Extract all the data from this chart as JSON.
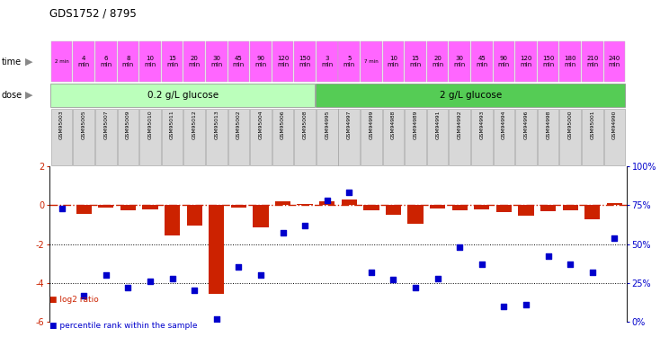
{
  "title": "GDS1752 / 8795",
  "samples": [
    "GSM95003",
    "GSM95005",
    "GSM95007",
    "GSM95009",
    "GSM95010",
    "GSM95011",
    "GSM95012",
    "GSM95013",
    "GSM95002",
    "GSM95004",
    "GSM95006",
    "GSM95008",
    "GSM94995",
    "GSM94997",
    "GSM94999",
    "GSM94988",
    "GSM94989",
    "GSM94991",
    "GSM94992",
    "GSM94993",
    "GSM94994",
    "GSM94996",
    "GSM94998",
    "GSM95000",
    "GSM95001",
    "GSM94990"
  ],
  "log2_ratio": [
    0.0,
    -0.45,
    -0.15,
    -0.25,
    -0.2,
    -1.55,
    -1.05,
    -4.55,
    -0.12,
    -1.15,
    0.18,
    0.08,
    0.18,
    0.3,
    -0.28,
    -0.48,
    -0.95,
    -0.18,
    -0.28,
    -0.22,
    -0.38,
    -0.55,
    -0.32,
    -0.28,
    -0.75,
    0.12
  ],
  "percentile": [
    73,
    17,
    30,
    22,
    26,
    28,
    20,
    2,
    35,
    30,
    57,
    62,
    78,
    83,
    32,
    27,
    22,
    28,
    48,
    37,
    10,
    11,
    42,
    37,
    32,
    54
  ],
  "ylim_left": [
    -6,
    2
  ],
  "ylim_right": [
    0,
    100
  ],
  "yticks_left": [
    -6,
    -4,
    -2,
    0,
    2
  ],
  "yticks_right": [
    0,
    25,
    50,
    75,
    100
  ],
  "ytick_labels_right": [
    "0%",
    "25%",
    "50%",
    "75%",
    "100%"
  ],
  "bar_color": "#cc2200",
  "dot_color": "#0000cc",
  "ref_line_color": "#cc2200",
  "dose_0_2_label": "0.2 g/L glucose",
  "dose_2_label": "2 g/L glucose",
  "dose_0_2_color": "#bbffbb",
  "dose_2_color": "#55cc55",
  "time_color": "#ff66ff",
  "time_cells_0_2": [
    "2 min",
    "4\nmin",
    "6\nmin",
    "8\nmin",
    "10\nmin",
    "15\nmin",
    "20\nmin",
    "30\nmin",
    "45\nmin",
    "90\nmin",
    "120\nmin",
    "150\nmin"
  ],
  "time_cells_2": [
    "3\nmin",
    "5\nmin",
    "7 min",
    "10\nmin",
    "15\nmin",
    "20\nmin",
    "30\nmin",
    "45\nmin",
    "90\nmin",
    "120\nmin",
    "150\nmin",
    "180\nmin",
    "210\nmin",
    "240\nmin"
  ],
  "legend_red": "log2 ratio",
  "legend_blue": "percentile rank within the sample",
  "n_samples_0_2": 12,
  "n_samples_2": 14,
  "names_bg": "#d8d8d8",
  "names_edge": "#999999"
}
